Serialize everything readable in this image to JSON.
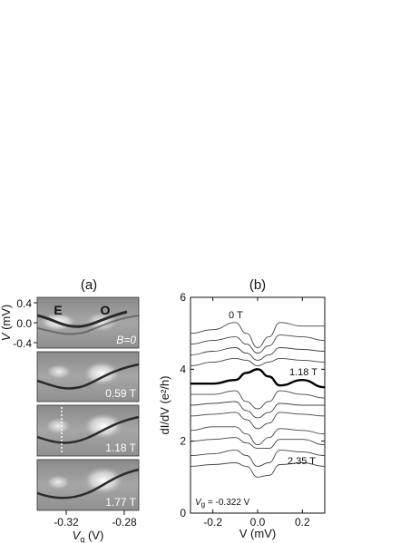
{
  "panel_a": {
    "tag": "(a)",
    "ylabel_var": "V",
    "ylabel_unit": " (mV)",
    "yticks": [
      "0.4",
      "0.0",
      "-0.4"
    ],
    "xticks": [
      "-0.32",
      "-0.28"
    ],
    "xlabel_var": "V",
    "xlabel_sub": "g",
    "xlabel_unit": " (V)",
    "markers": [
      "E",
      "O"
    ],
    "field_labels": [
      "B=0",
      "0.59 T",
      "1.18 T",
      "1.77 T"
    ]
  },
  "panel_b": {
    "tag": "(b)",
    "ylabel": "dI/dV (e²/h)",
    "xlabel": "V  (mV)",
    "gate_note_var": "V",
    "gate_note_sub": "g",
    "gate_note_rest": " = -0.322 V",
    "curve_labels": [
      "0 T",
      "1.18 T",
      "2.35 T"
    ]
  },
  "chart_data": [
    {
      "type": "heatmap",
      "title": "(a)",
      "xlabel": "Vg (V)",
      "ylabel": "V (mV)",
      "xlim": [
        -0.345,
        -0.27
      ],
      "ylim": [
        -0.5,
        0.5
      ],
      "x_ticks": [
        -0.32,
        -0.28
      ],
      "y_ticks": [
        0.4,
        0.0,
        -0.4
      ],
      "panels": [
        "B=0",
        "0.59 T",
        "1.18 T",
        "1.77 T"
      ],
      "annotations": [
        "E",
        "O"
      ]
    },
    {
      "type": "line",
      "title": "(b)",
      "xlabel": "V (mV)",
      "ylabel": "dI/dV (e²/h)",
      "xlim": [
        -0.3,
        0.3
      ],
      "ylim": [
        0,
        6
      ],
      "x_ticks": [
        -0.2,
        0.0,
        0.2
      ],
      "y_ticks": [
        0,
        2,
        4,
        6
      ],
      "annotations": [
        "0 T",
        "1.18 T",
        "2.35 T",
        "Vg = -0.322 V"
      ],
      "x": [
        -0.3,
        -0.2,
        -0.1,
        -0.05,
        0.0,
        0.05,
        0.1,
        0.2,
        0.3
      ],
      "series": [
        {
          "values": [
            5.0,
            5.1,
            5.3,
            5.0,
            4.6,
            4.9,
            5.3,
            5.2,
            5.2
          ]
        },
        {
          "values": [
            4.7,
            4.8,
            4.9,
            4.7,
            4.45,
            4.65,
            4.95,
            4.9,
            4.8
          ]
        },
        {
          "values": [
            4.4,
            4.5,
            4.6,
            4.45,
            4.25,
            4.4,
            4.6,
            4.55,
            4.5
          ]
        },
        {
          "values": [
            4.1,
            4.2,
            4.3,
            4.25,
            4.1,
            4.2,
            4.3,
            4.25,
            4.2
          ]
        },
        {
          "values": [
            3.6,
            3.6,
            3.7,
            3.9,
            4.0,
            3.8,
            3.55,
            3.7,
            3.5
          ]
        },
        {
          "values": [
            3.3,
            3.3,
            3.4,
            3.1,
            2.9,
            3.1,
            3.4,
            3.3,
            3.2
          ]
        },
        {
          "values": [
            3.0,
            3.05,
            3.1,
            2.85,
            2.65,
            2.8,
            3.05,
            3.0,
            3.0
          ]
        },
        {
          "values": [
            2.7,
            2.75,
            2.8,
            2.6,
            2.35,
            2.5,
            2.8,
            2.75,
            2.7
          ]
        },
        {
          "values": [
            2.3,
            2.4,
            2.4,
            2.2,
            1.9,
            2.1,
            2.35,
            2.3,
            2.2
          ]
        },
        {
          "values": [
            2.0,
            2.05,
            2.1,
            1.95,
            1.8,
            1.8,
            2.05,
            2.05,
            1.9
          ]
        },
        {
          "values": [
            1.6,
            1.65,
            1.75,
            1.6,
            1.3,
            1.4,
            1.75,
            1.7,
            1.6
          ]
        },
        {
          "values": [
            1.3,
            1.35,
            1.4,
            1.3,
            1.0,
            1.05,
            1.35,
            1.4,
            1.3
          ]
        }
      ],
      "highlighted_series_index": 4
    }
  ]
}
